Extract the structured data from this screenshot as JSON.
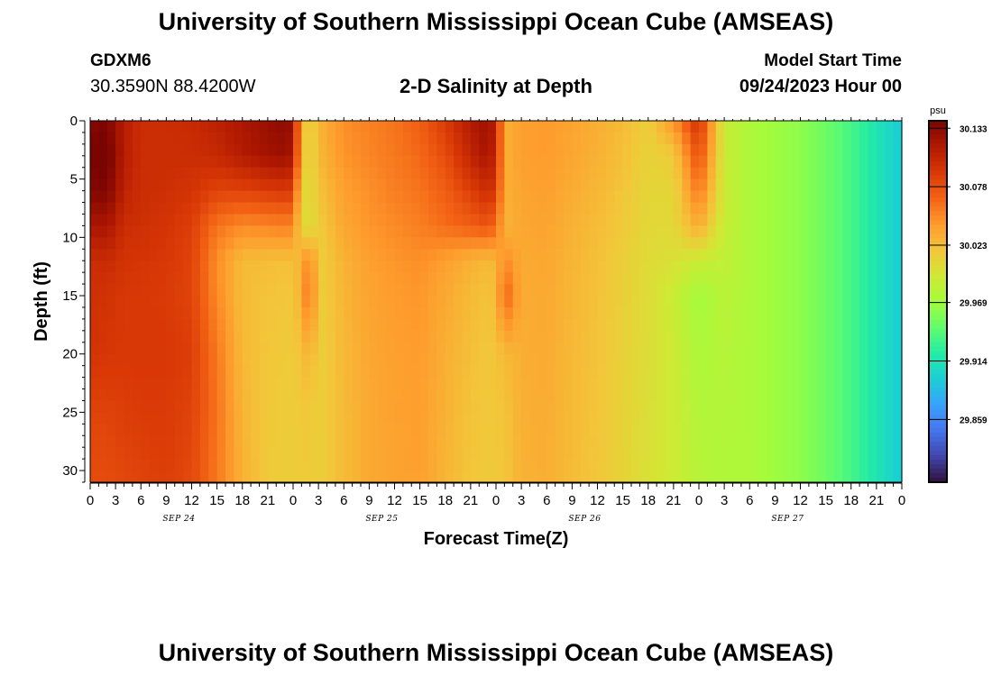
{
  "header": {
    "title": "University of Southern Mississippi Ocean Cube (AMSEAS)",
    "station": "GDXM6",
    "coords": "30.3590N  88.4200W",
    "subtitle": "2-D Salinity at Depth",
    "model_start_label": "Model Start Time",
    "model_start_value": "09/24/2023 Hour 00"
  },
  "footer": {
    "title": "University of Southern Mississippi Ocean Cube (AMSEAS)"
  },
  "chart_data": {
    "type": "heatmap",
    "title": "2-D Salinity at Depth",
    "xlabel": "Forecast Time(Z)",
    "ylabel": "Depth (ft)",
    "x_ticks": [
      "0",
      "3",
      "6",
      "9",
      "12",
      "15",
      "18",
      "21",
      "0",
      "3",
      "6",
      "9",
      "12",
      "15",
      "18",
      "21",
      "0",
      "3",
      "6",
      "9",
      "12",
      "15",
      "18",
      "21",
      "0",
      "3",
      "6",
      "9",
      "12",
      "15",
      "18",
      "21",
      "0"
    ],
    "date_labels": [
      "SEP 24",
      "SEP 25",
      "SEP 26",
      "SEP 27"
    ],
    "xlim_hours": [
      0,
      96
    ],
    "y_ticks": [
      0,
      5,
      10,
      15,
      20,
      25,
      30
    ],
    "ylim": [
      0,
      31
    ],
    "y_inverted": true,
    "colorbar": {
      "unit": "psu",
      "ticks": [
        30.133,
        30.078,
        30.023,
        29.969,
        29.914,
        29.859
      ],
      "range": [
        29.8,
        30.14
      ],
      "colormap": [
        "#30123b",
        "#4145ab",
        "#4675ed",
        "#39a2fc",
        "#1bcfd4",
        "#24eca6",
        "#61fc6c",
        "#a4fc3b",
        "#d1e834",
        "#f3c63a",
        "#fe9b2d",
        "#f36315",
        "#d93806",
        "#b11901",
        "#7a0402"
      ]
    },
    "times_hours": [
      0,
      2,
      4,
      6,
      9,
      12,
      15,
      18,
      21,
      23,
      24,
      25,
      26,
      27,
      30,
      33,
      36,
      39,
      42,
      45,
      47,
      48,
      49,
      51,
      54,
      57,
      60,
      63,
      66,
      69,
      72,
      75,
      78,
      81,
      84,
      87,
      90,
      93,
      96
    ],
    "depths_ft": [
      0,
      3,
      6,
      9,
      12,
      15,
      20,
      25,
      31
    ],
    "salinity_psu": [
      [
        30.135,
        30.138,
        30.112,
        30.1,
        30.1,
        30.102,
        30.11,
        30.118,
        30.126,
        30.132,
        30.124,
        30.03,
        30.005,
        30.028,
        30.048,
        30.054,
        30.06,
        30.07,
        30.09,
        30.115,
        30.125,
        30.11,
        30.03,
        30.04,
        30.043,
        30.038,
        30.032,
        30.025,
        30.013,
        30.045,
        30.098,
        29.99,
        29.975,
        29.968,
        29.962,
        29.95,
        29.935,
        29.915,
        29.893
      ],
      [
        30.14,
        30.145,
        30.112,
        30.1,
        30.1,
        30.1,
        30.103,
        30.114,
        30.122,
        30.126,
        30.118,
        30.025,
        30.004,
        30.026,
        30.046,
        30.052,
        30.058,
        30.065,
        30.08,
        30.106,
        30.12,
        30.105,
        30.03,
        30.04,
        30.042,
        30.036,
        30.03,
        30.022,
        30.01,
        30.015,
        30.08,
        29.99,
        29.975,
        29.968,
        29.962,
        29.95,
        29.935,
        29.915,
        29.895
      ],
      [
        30.135,
        30.138,
        30.108,
        30.1,
        30.098,
        30.095,
        30.085,
        30.085,
        30.09,
        30.092,
        30.088,
        30.01,
        30.002,
        30.02,
        30.04,
        30.048,
        30.055,
        30.06,
        30.07,
        30.088,
        30.1,
        30.092,
        30.03,
        30.038,
        30.04,
        30.033,
        30.027,
        30.019,
        30.008,
        30.008,
        30.06,
        29.99,
        29.975,
        29.968,
        29.962,
        29.95,
        29.935,
        29.915,
        29.895
      ],
      [
        30.118,
        30.12,
        30.1,
        30.098,
        30.095,
        30.088,
        30.06,
        30.05,
        30.052,
        30.054,
        30.052,
        30.008,
        30.0,
        30.015,
        30.036,
        30.045,
        30.05,
        30.055,
        30.063,
        30.07,
        30.075,
        30.065,
        30.028,
        30.036,
        30.038,
        30.03,
        30.024,
        30.016,
        30.006,
        30.006,
        30.035,
        29.988,
        29.975,
        29.968,
        29.962,
        29.95,
        29.935,
        29.915,
        29.895
      ],
      [
        30.1,
        30.102,
        30.095,
        30.094,
        30.092,
        30.085,
        30.048,
        30.025,
        30.023,
        30.022,
        30.022,
        30.03,
        30.06,
        30.012,
        30.03,
        30.04,
        30.045,
        30.048,
        30.04,
        30.03,
        30.025,
        30.028,
        30.05,
        30.034,
        30.036,
        30.028,
        30.022,
        30.013,
        30.004,
        30.0,
        29.99,
        29.985,
        29.975,
        29.968,
        29.962,
        29.95,
        29.935,
        29.915,
        29.895
      ],
      [
        30.098,
        30.096,
        30.092,
        30.092,
        30.09,
        30.085,
        30.05,
        30.024,
        30.02,
        30.018,
        30.018,
        30.032,
        30.07,
        30.012,
        30.028,
        30.038,
        30.042,
        30.045,
        30.035,
        30.025,
        30.02,
        30.025,
        30.07,
        30.033,
        30.035,
        30.027,
        30.021,
        30.012,
        30.003,
        29.99,
        29.97,
        29.982,
        29.975,
        29.968,
        29.962,
        29.95,
        29.935,
        29.915,
        29.895
      ],
      [
        30.095,
        30.093,
        30.092,
        30.092,
        30.092,
        30.088,
        30.058,
        30.026,
        30.018,
        30.016,
        30.016,
        30.02,
        30.032,
        30.012,
        30.026,
        30.036,
        30.04,
        30.042,
        30.032,
        30.022,
        30.018,
        30.02,
        30.025,
        30.032,
        30.034,
        30.026,
        30.02,
        30.011,
        30.002,
        29.992,
        29.975,
        29.98,
        29.975,
        29.968,
        29.962,
        29.95,
        29.935,
        29.915,
        29.895
      ],
      [
        30.085,
        30.085,
        30.088,
        30.09,
        30.09,
        30.085,
        30.06,
        30.028,
        30.017,
        30.015,
        30.015,
        30.016,
        30.018,
        30.012,
        30.025,
        30.035,
        30.039,
        30.041,
        30.03,
        30.02,
        30.017,
        30.018,
        30.02,
        30.031,
        30.033,
        30.025,
        30.019,
        30.01,
        30.001,
        29.992,
        29.978,
        29.978,
        29.975,
        29.968,
        29.962,
        29.95,
        29.935,
        29.915,
        29.895
      ],
      [
        30.08,
        30.08,
        30.083,
        30.085,
        30.088,
        30.082,
        30.058,
        30.03,
        30.016,
        30.014,
        30.014,
        30.015,
        30.016,
        30.012,
        30.025,
        30.035,
        30.038,
        30.04,
        30.028,
        30.018,
        30.016,
        30.017,
        30.018,
        30.03,
        30.032,
        30.024,
        30.018,
        30.009,
        30.0,
        29.992,
        29.98,
        29.976,
        29.975,
        29.968,
        29.962,
        29.95,
        29.935,
        29.915,
        29.895
      ]
    ]
  }
}
